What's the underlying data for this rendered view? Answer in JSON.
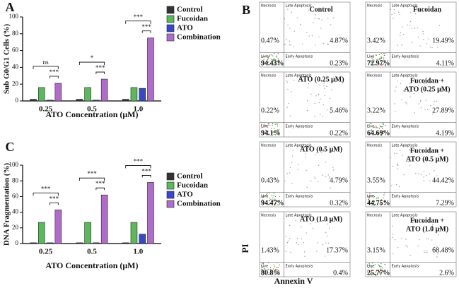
{
  "chart_data": [
    {
      "type": "bar",
      "panel": "A",
      "y_label": "Sub G0/G1 Cells (%)",
      "x_label": "ATO Concentration (μM)",
      "categories": [
        "0.25",
        "0.5",
        "1.0"
      ],
      "series": [
        {
          "name": "Control",
          "color": "#333333",
          "values": [
            2,
            2,
            2
          ]
        },
        {
          "name": "Fucoidan",
          "color": "#5cb85c",
          "values": [
            16,
            16,
            16
          ]
        },
        {
          "name": "ATO",
          "color": "#3848c8",
          "values": [
            1,
            1,
            15
          ]
        },
        {
          "name": "Combination",
          "color": "#b06ccb",
          "values": [
            21,
            26,
            75
          ]
        }
      ],
      "ylim": [
        0,
        100
      ],
      "yticks": [
        0,
        20,
        40,
        60,
        80,
        100
      ],
      "significance": [
        [
          "ns",
          "***"
        ],
        [
          "*",
          "***"
        ],
        [
          "***",
          "***"
        ]
      ]
    },
    {
      "type": "bar",
      "panel": "C",
      "y_label": "DNA Fragmentation (%)",
      "x_label": "ATO Concentration (μM)",
      "categories": [
        "0.25",
        "0.5",
        "1.0"
      ],
      "series": [
        {
          "name": "Control",
          "color": "#333333",
          "values": [
            1,
            1,
            1
          ]
        },
        {
          "name": "Fucoidan",
          "color": "#5cb85c",
          "values": [
            27,
            27,
            27
          ]
        },
        {
          "name": "ATO",
          "color": "#3848c8",
          "values": [
            1,
            1,
            12
          ]
        },
        {
          "name": "Combination",
          "color": "#b06ccb",
          "values": [
            43,
            62,
            78
          ]
        }
      ],
      "ylim": [
        0,
        100
      ],
      "yticks": [
        0,
        20,
        40,
        60,
        80,
        100
      ],
      "significance": [
        [
          "***",
          "***"
        ],
        [
          "***",
          "***"
        ],
        [
          "***",
          "***"
        ]
      ]
    }
  ],
  "flow": {
    "panel": "B",
    "y_label": "PI",
    "x_label": "Annexin V",
    "quadrant_labels": [
      "Necrosis",
      "Late Apoptosis",
      "Live",
      "Early Apoptosis"
    ],
    "plots": [
      {
        "title": [
          "Control"
        ],
        "quadrants": [
          "0.47%",
          "4.87%",
          "94.43%",
          "0.23%"
        ]
      },
      {
        "title": [
          "Fucoidan"
        ],
        "quadrants": [
          "3.42%",
          "19.49%",
          "72.97%",
          "4.11%"
        ]
      },
      {
        "title": [
          "ATO (0.25 μM)"
        ],
        "quadrants": [
          "0.22%",
          "5.46%",
          "94.1%",
          "0.22%"
        ]
      },
      {
        "title": [
          "Fucoidan +",
          "ATO (0.25 μM)"
        ],
        "quadrants": [
          "3.22%",
          "27.89%",
          "64.69%",
          "4.19%"
        ]
      },
      {
        "title": [
          "ATO (0.5 μM)"
        ],
        "quadrants": [
          "0.43%",
          "4.79%",
          "94.47%",
          "0.32%"
        ]
      },
      {
        "title": [
          "Fucoidan +",
          "ATO (0.5 μM)"
        ],
        "quadrants": [
          "3.55%",
          "44.42%",
          "44.75%",
          "7.29%"
        ]
      },
      {
        "title": [
          "ATO (1.0 μM)"
        ],
        "quadrants": [
          "1.43%",
          "17.37%",
          "80.8%",
          "0.4%"
        ]
      },
      {
        "title": [
          "Fucoidan +",
          "ATO (1.0 μM)"
        ],
        "quadrants": [
          "3.15%",
          "68.48%",
          "25.77%",
          "2.6%"
        ]
      }
    ]
  }
}
